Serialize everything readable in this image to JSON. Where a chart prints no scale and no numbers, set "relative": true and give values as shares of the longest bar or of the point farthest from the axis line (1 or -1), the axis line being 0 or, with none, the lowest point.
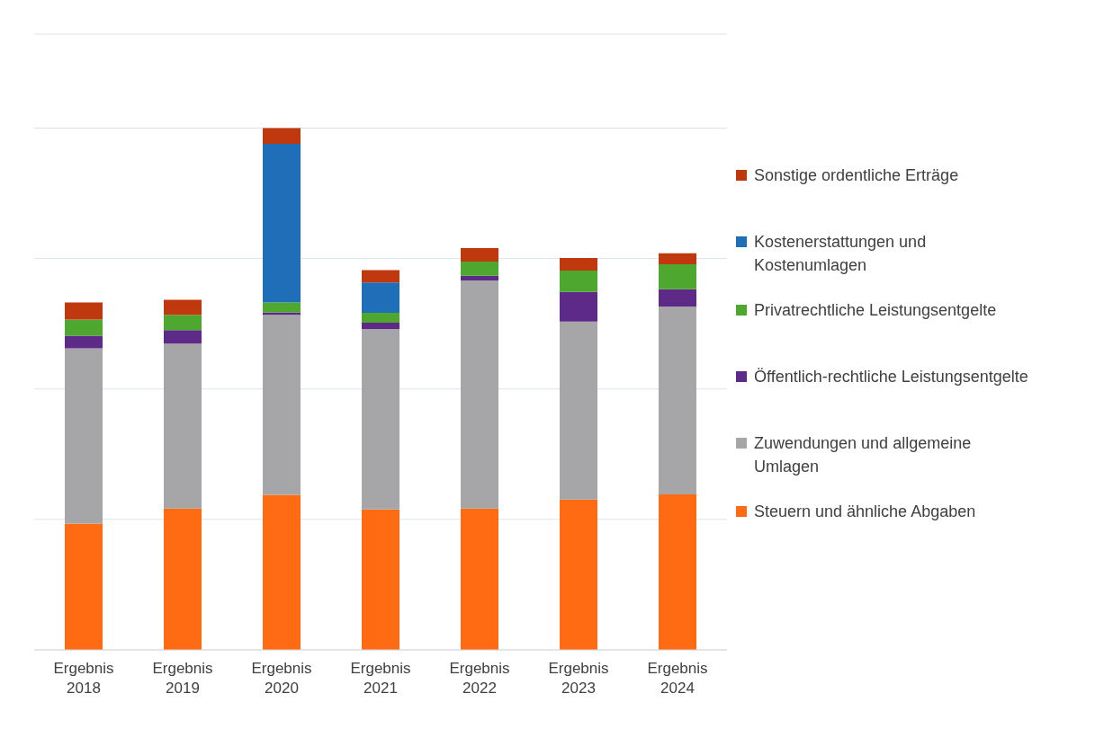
{
  "chart_data": {
    "type": "bar",
    "stacked": true,
    "relative": true,
    "grid": "y",
    "legend": "right",
    "categories": [
      "Ergebnis 2018",
      "Ergebnis 2019",
      "Ergebnis 2020",
      "Ergebnis 2021",
      "Ergebnis 2022",
      "Ergebnis 2023",
      "Ergebnis 2024"
    ],
    "series": [
      {
        "name": "Steuern und ähnliche Abgaben",
        "color": "#fe6b12",
        "values": [
          0.242,
          0.271,
          0.297,
          0.269,
          0.271,
          0.288,
          0.298
        ]
      },
      {
        "name": "Zuwendungen und allgemeine Umlagen",
        "color": "#a6a6a8",
        "values": [
          0.336,
          0.316,
          0.345,
          0.346,
          0.437,
          0.341,
          0.36
        ]
      },
      {
        "name": "Öffentlich-rechtliche Leistungsentgelte",
        "color": "#5d2a87",
        "values": [
          0.024,
          0.026,
          0.005,
          0.012,
          0.009,
          0.057,
          0.033
        ]
      },
      {
        "name": "Privatrechtliche Leistungsentgelte",
        "color": "#4ea72e",
        "values": [
          0.031,
          0.029,
          0.019,
          0.019,
          0.027,
          0.041,
          0.048
        ]
      },
      {
        "name": "Kostenerstattungen und Kostenumlagen",
        "color": "#1f6fb8",
        "values": [
          0,
          0,
          0.304,
          0.058,
          0,
          0,
          0
        ]
      },
      {
        "name": "Sonstige ordentliche Erträge",
        "color": "#c0390e",
        "values": [
          0.033,
          0.029,
          0.03,
          0.024,
          0.026,
          0.024,
          0.021
        ]
      }
    ]
  }
}
